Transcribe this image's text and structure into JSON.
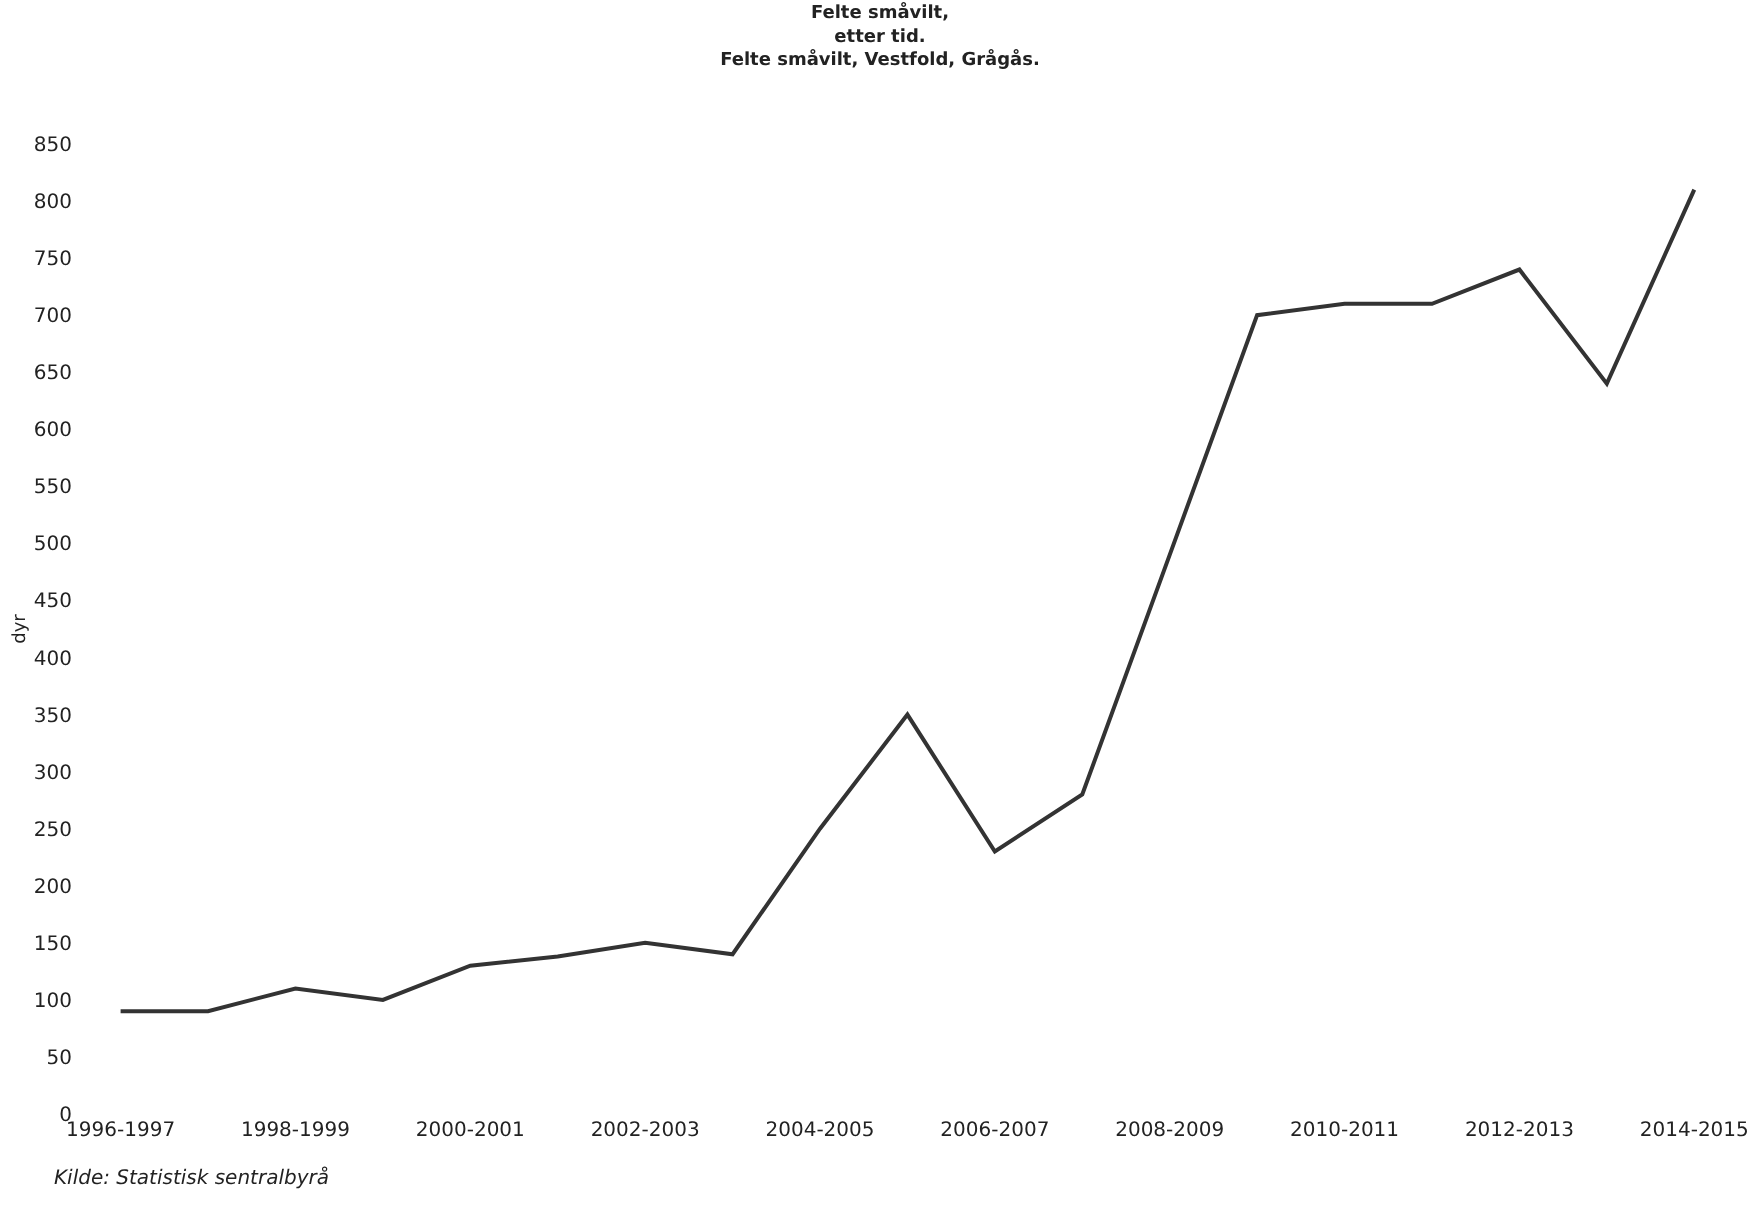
{
  "chart_data": {
    "type": "line",
    "title": "Felte småvilt,\netter tid.\nFelte småvilt, Vestfold, Grågås.",
    "ylabel": "dyr",
    "categories": [
      "1996-1997",
      null,
      "1998-1999",
      null,
      "2000-2001",
      null,
      "2002-2003",
      null,
      "2004-2005",
      null,
      "2006-2007",
      null,
      "2008-2009",
      null,
      "2010-2011",
      null,
      "2012-2013",
      null,
      "2014-2015"
    ],
    "series": [
      {
        "color": "#333333",
        "values": [
          90,
          90,
          110,
          100,
          130,
          138,
          150,
          140,
          250,
          350,
          230,
          280,
          490,
          700,
          710,
          710,
          740,
          640,
          810
        ]
      }
    ],
    "ylim": [
      0,
      850
    ],
    "yticks": [
      0,
      50,
      100,
      150,
      200,
      250,
      300,
      350,
      400,
      450,
      500,
      550,
      600,
      650,
      700,
      750,
      800,
      850
    ],
    "grid": false,
    "marker": "none",
    "line_style": "solid",
    "annotations": [
      "Kilde: Statistisk sentralbyrå"
    ]
  }
}
